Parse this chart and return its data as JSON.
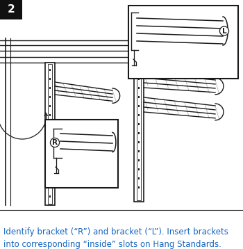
{
  "title_box": {
    "text": "2",
    "bg_color": "#111111",
    "text_color": "#ffffff",
    "fontsize": 11
  },
  "caption_text": "Identify bracket (“R”) and bracket (“L”). Insert brackets\ninto corresponding “inside” slots on Hang Standards.",
  "caption_color": "#1565c0",
  "caption_fontsize": 8.5,
  "bg_color": "#ffffff",
  "fig_width": 3.5,
  "fig_height": 3.58,
  "dpi": 100
}
